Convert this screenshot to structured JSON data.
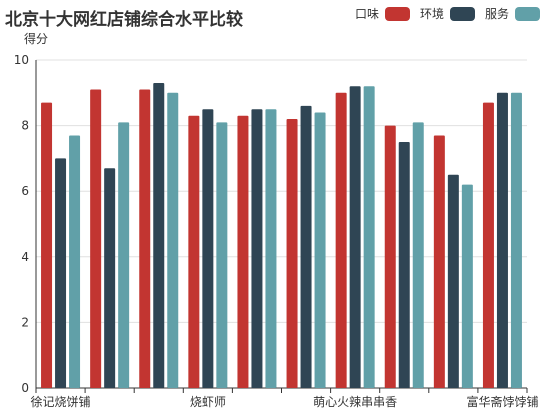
{
  "chart_data": {
    "type": "bar",
    "title": "北京十大网红店铺综合水平比较",
    "xlabel": "",
    "ylabel": "得分",
    "ylim": [
      0,
      10
    ],
    "yticks": [
      0,
      2,
      4,
      6,
      8,
      10
    ],
    "grid": true,
    "legend_position": "top-right",
    "categories": [
      "徐记烧饼铺",
      "",
      "",
      "烧虾师",
      "",
      "",
      "萌心火辣串串香",
      "",
      "",
      "富华斋饽饽铺"
    ],
    "series": [
      {
        "name": "口味",
        "color": "#c23531",
        "values": [
          8.7,
          9.1,
          9.1,
          8.3,
          8.3,
          8.2,
          9.0,
          8.0,
          7.7,
          8.7
        ]
      },
      {
        "name": "环境",
        "color": "#2f4554",
        "values": [
          7.0,
          6.7,
          9.3,
          8.5,
          8.5,
          8.6,
          9.2,
          7.5,
          6.5,
          9.0
        ]
      },
      {
        "name": "服务",
        "color": "#61a0a8",
        "values": [
          7.7,
          8.1,
          9.0,
          8.1,
          8.5,
          8.4,
          9.2,
          8.1,
          6.2,
          9.0
        ]
      }
    ]
  }
}
